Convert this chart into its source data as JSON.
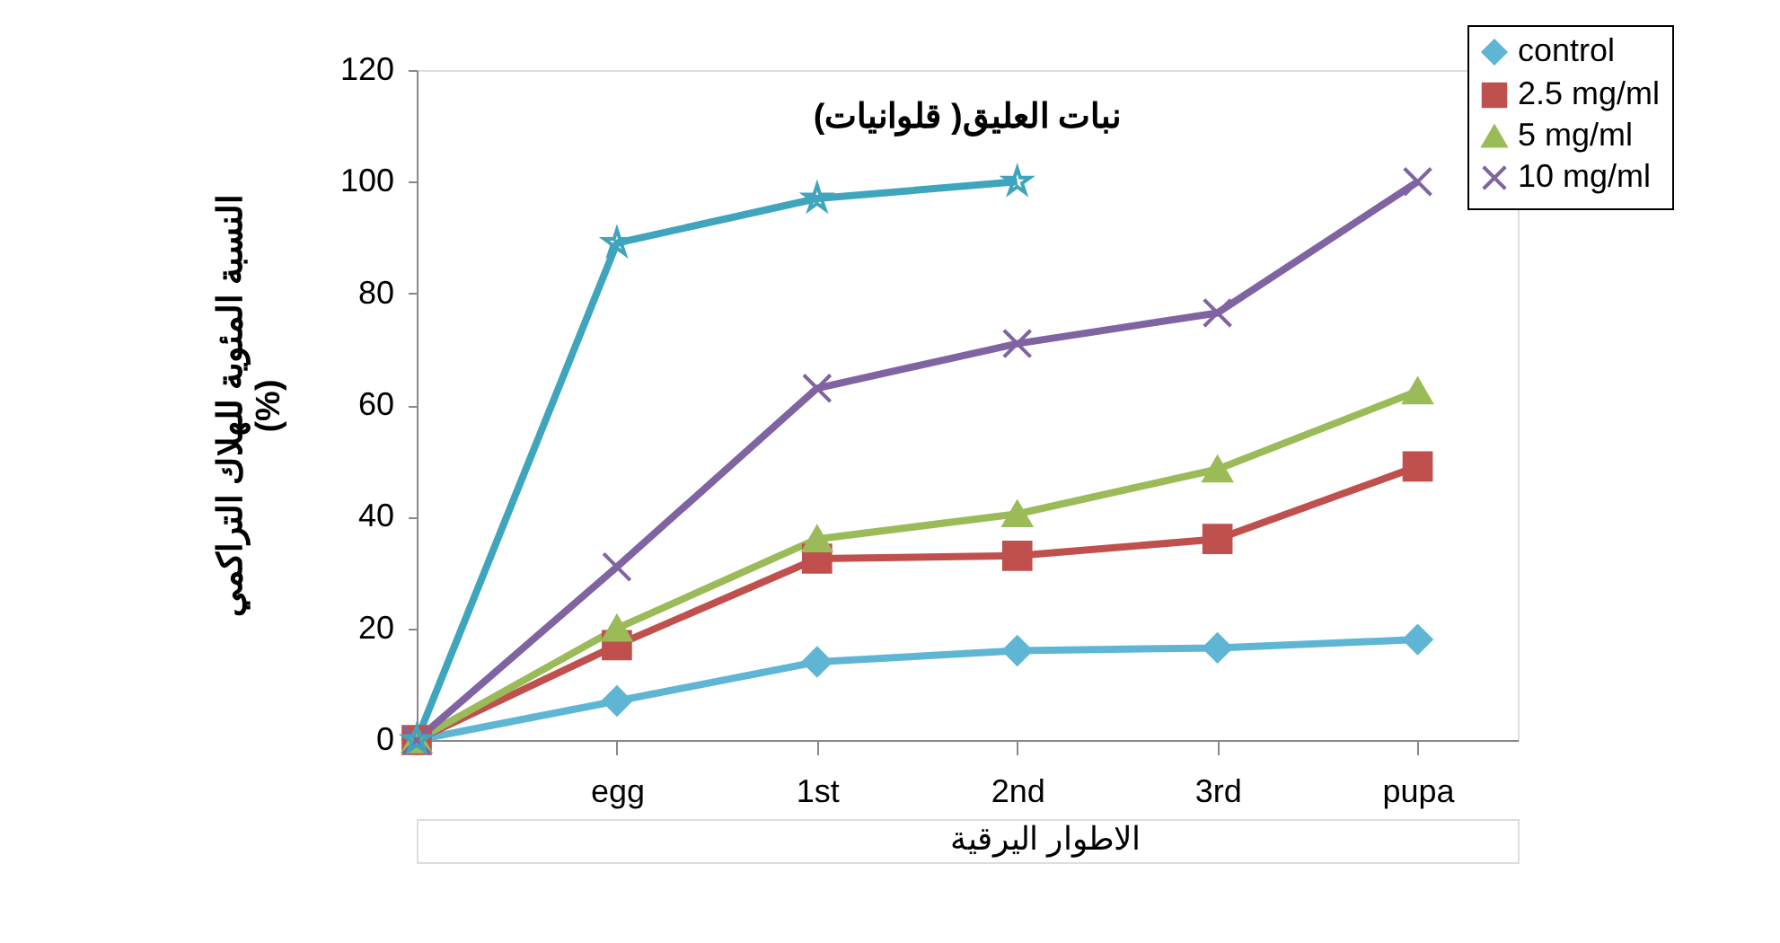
{
  "chart_data": {
    "type": "line",
    "title": "نبات العليق( قلوانيات)",
    "ylabel": "النسبة المئوية للهلاك التراكمي\n(%)",
    "categories": [
      null,
      "egg",
      "1st",
      "2nd",
      "3rd",
      "pupa"
    ],
    "series": [
      {
        "name": "control",
        "color": "#5fb6d4",
        "marker": "diamond",
        "values": [
          0,
          7,
          14,
          16,
          16.5,
          18
        ]
      },
      {
        "name": "2.5 mg/ml",
        "color": "#c0504d",
        "marker": "square",
        "values": [
          0,
          17,
          32.5,
          33,
          36,
          49
        ]
      },
      {
        "name": "5 mg/ml",
        "color": "#9bbb59",
        "marker": "triangle",
        "values": [
          0,
          20,
          36,
          40.5,
          48.5,
          62.5
        ]
      },
      {
        "name": "10 mg/ml",
        "color": "#8064a2",
        "marker": "cross",
        "values": [
          0,
          31,
          63,
          71,
          76.5,
          100
        ]
      },
      {
        "color": "#3fa5bd",
        "marker": "star",
        "values": [
          0,
          89,
          97,
          100,
          null,
          null
        ]
      }
    ],
    "ylim": [
      0,
      120
    ],
    "yticks": [
      0,
      20,
      40,
      60,
      80,
      100,
      120
    ],
    "grid": false,
    "legend": "top right",
    "line_style": "solid",
    "annotations": [
      "الاطوار اليرقية"
    ]
  }
}
